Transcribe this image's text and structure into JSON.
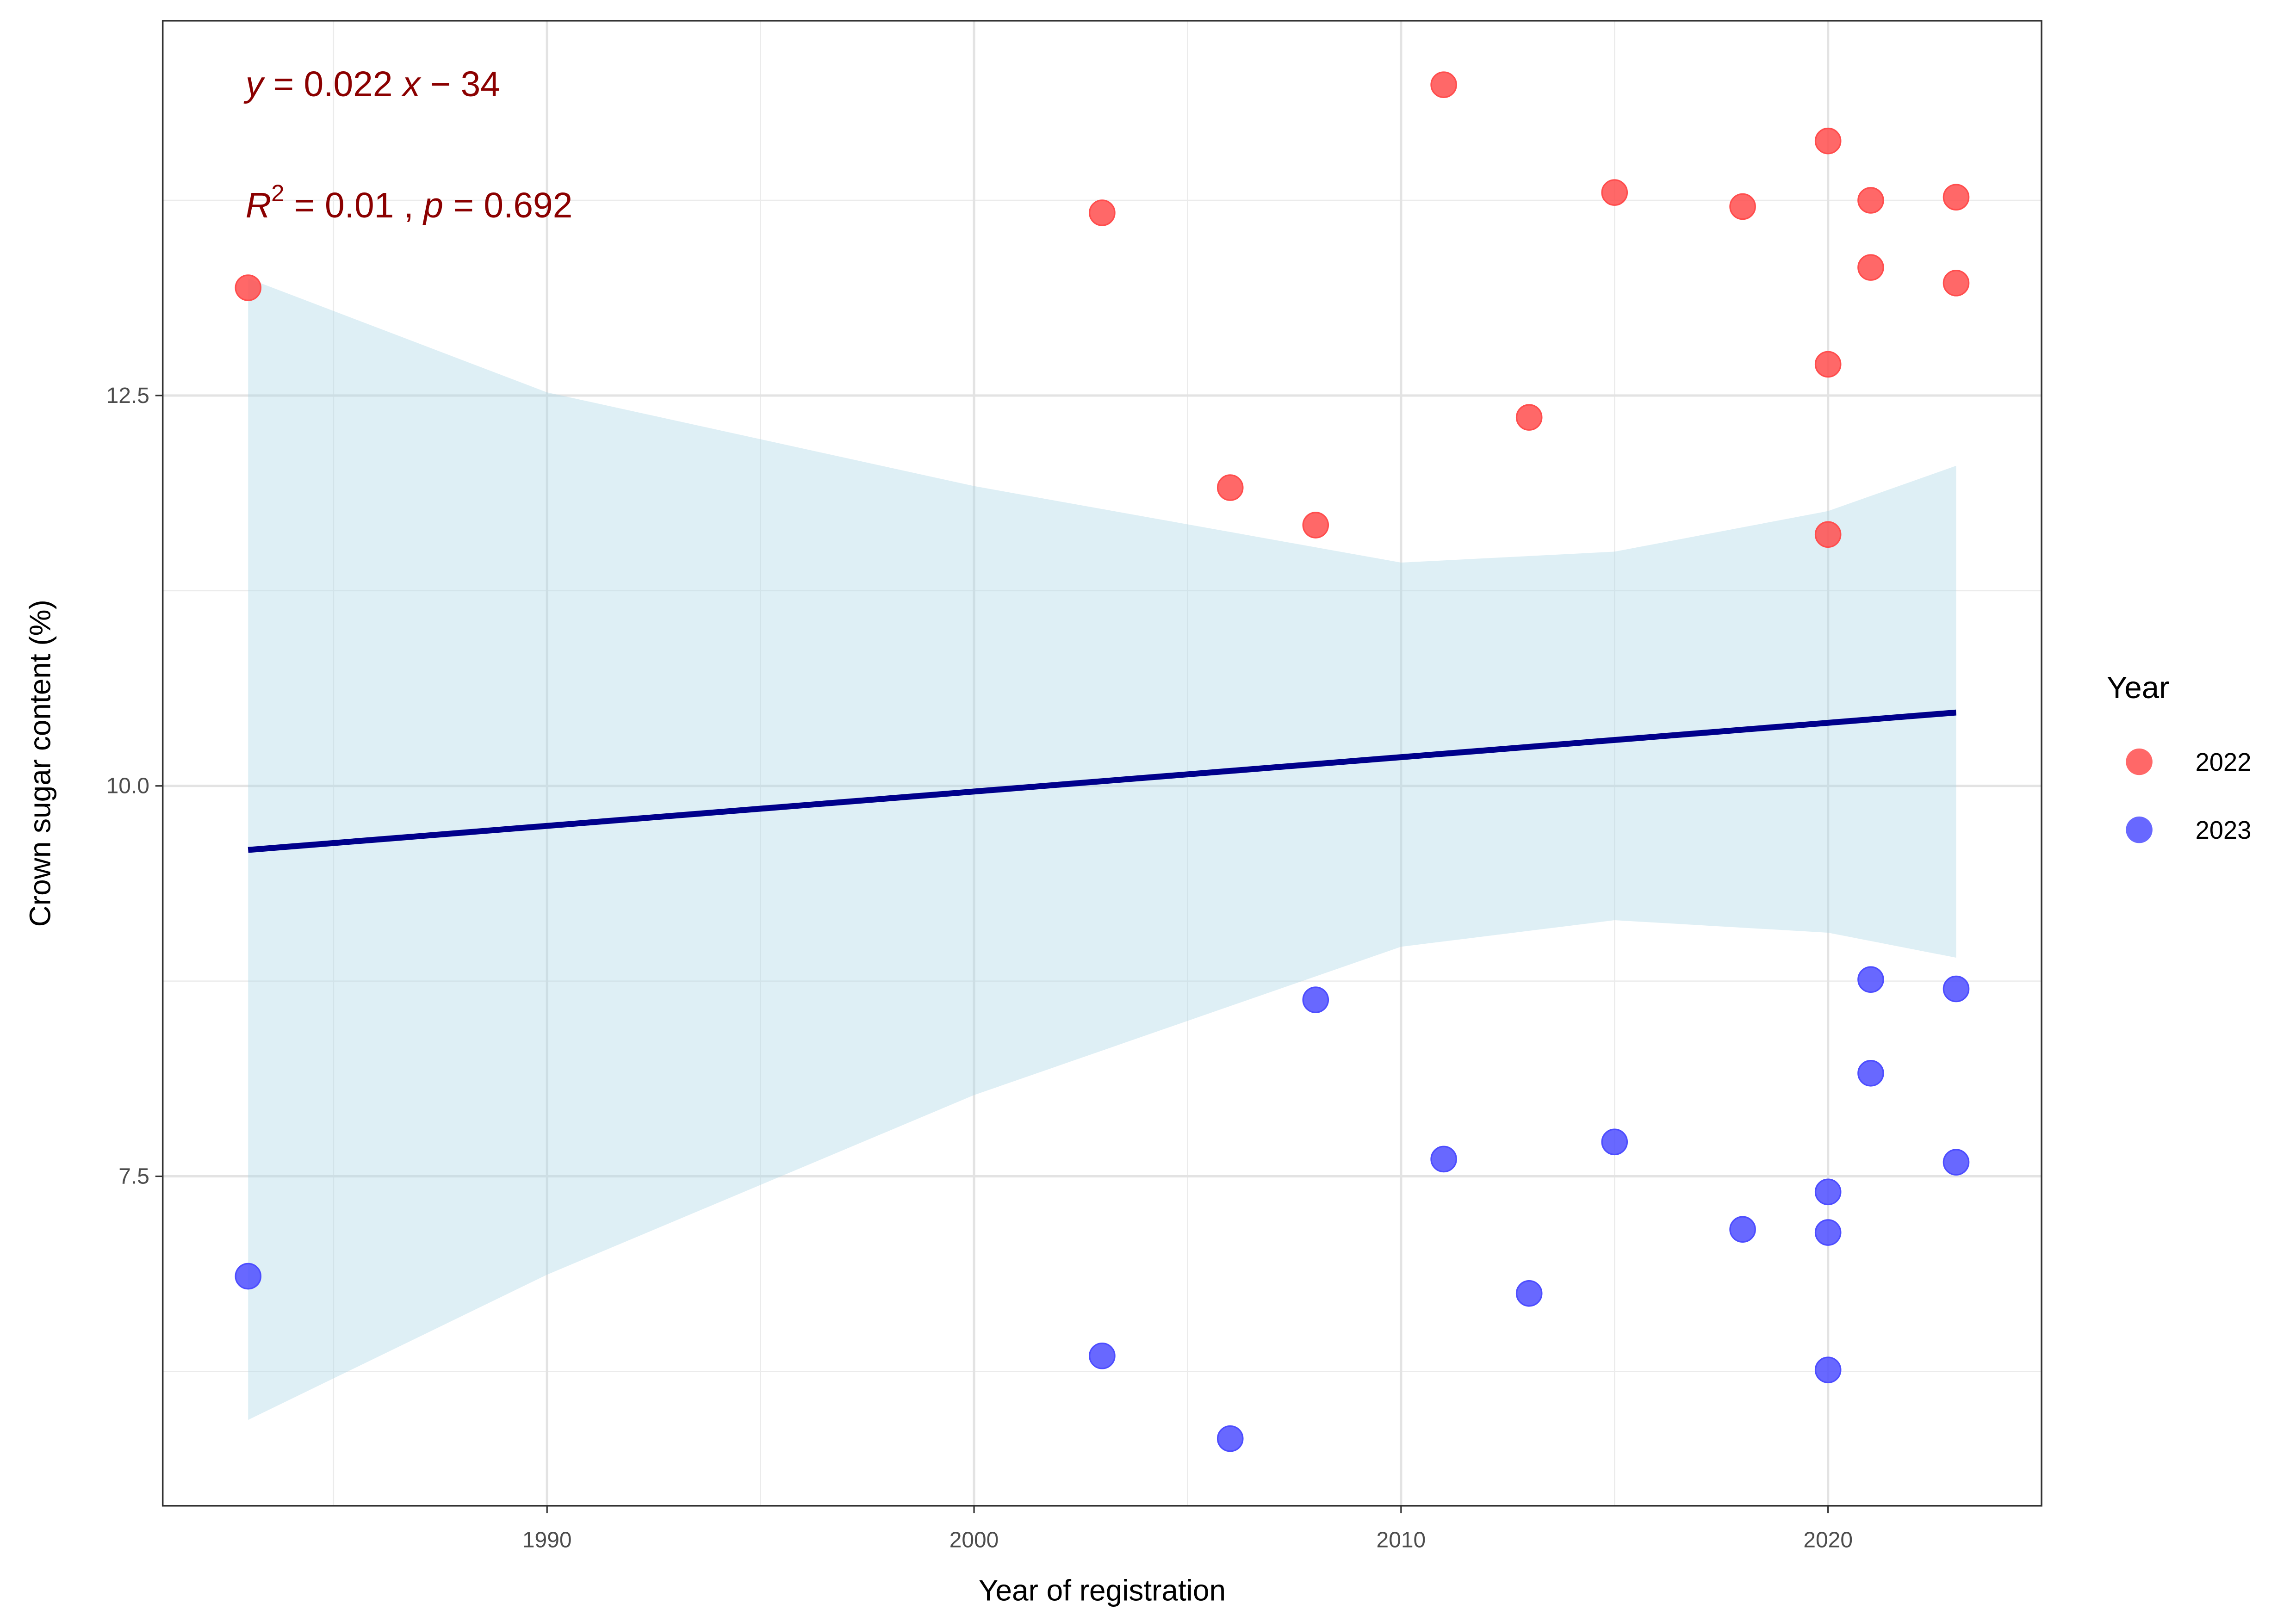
{
  "chart_data": {
    "type": "scatter",
    "title": "",
    "xlabel": "Year of registration",
    "ylabel": "Crown sugar content (%)",
    "xlim": [
      1981,
      2025
    ],
    "ylim": [
      5.39,
      14.9
    ],
    "x_ticks": [
      1990,
      2000,
      2010,
      2020
    ],
    "x_tick_labels": [
      "1990",
      "2000",
      "2010",
      "2020"
    ],
    "y_ticks": [
      7.5,
      10.0,
      12.5
    ],
    "y_tick_labels": [
      "7.5",
      "10.0",
      "12.5"
    ],
    "x_minor": [
      1985,
      1995,
      2005,
      2015
    ],
    "y_minor": [
      6.25,
      8.75,
      11.25,
      13.75
    ],
    "grid": true,
    "legend": {
      "title": "Year",
      "placement": "right",
      "entries": [
        "2022",
        "2023"
      ]
    },
    "colors": {
      "2022": "#ff4d4d",
      "2023": "#4d4dff",
      "line": "#00008b",
      "ribbon": "#add8e6",
      "annotation": "#8b0000"
    },
    "series": [
      {
        "name": "2022",
        "points": [
          [
            1983,
            13.19
          ],
          [
            2003,
            13.67
          ],
          [
            2006,
            11.91
          ],
          [
            2008,
            11.67
          ],
          [
            2011,
            14.49
          ],
          [
            2013,
            12.36
          ],
          [
            2015,
            13.8
          ],
          [
            2018,
            13.71
          ],
          [
            2020,
            14.13
          ],
          [
            2020,
            12.7
          ],
          [
            2020,
            11.61
          ],
          [
            2021,
            13.75
          ],
          [
            2021,
            13.32
          ],
          [
            2023,
            13.77
          ],
          [
            2023,
            13.22
          ]
        ]
      },
      {
        "name": "2023",
        "points": [
          [
            1983,
            6.86
          ],
          [
            2003,
            6.35
          ],
          [
            2006,
            5.82
          ],
          [
            2008,
            8.63
          ],
          [
            2011,
            7.61
          ],
          [
            2013,
            6.75
          ],
          [
            2015,
            7.72
          ],
          [
            2018,
            7.16
          ],
          [
            2020,
            7.4
          ],
          [
            2020,
            7.14
          ],
          [
            2020,
            6.26
          ],
          [
            2021,
            8.76
          ],
          [
            2021,
            8.16
          ],
          [
            2023,
            8.7
          ],
          [
            2023,
            7.59
          ]
        ]
      }
    ],
    "regression": {
      "x": [
        1983,
        2023
      ],
      "y": [
        9.59,
        10.47
      ]
    },
    "confidence_band": {
      "x": [
        1983,
        1990,
        2000,
        2010,
        2015,
        2020,
        2023
      ],
      "upper": [
        13.25,
        12.52,
        11.92,
        11.43,
        11.5,
        11.76,
        12.05
      ],
      "lower": [
        5.94,
        6.87,
        8.02,
        8.97,
        9.14,
        9.06,
        8.9
      ]
    },
    "annotations": {
      "equation": {
        "y": "y",
        "eq1": " = 0.022 ",
        "x": "x",
        "eq2": " − 34"
      },
      "stats": {
        "r": "R",
        "sup": "2",
        "eq1": " = 0.01 , ",
        "p": "p",
        "eq2": " = 0.692"
      }
    }
  }
}
